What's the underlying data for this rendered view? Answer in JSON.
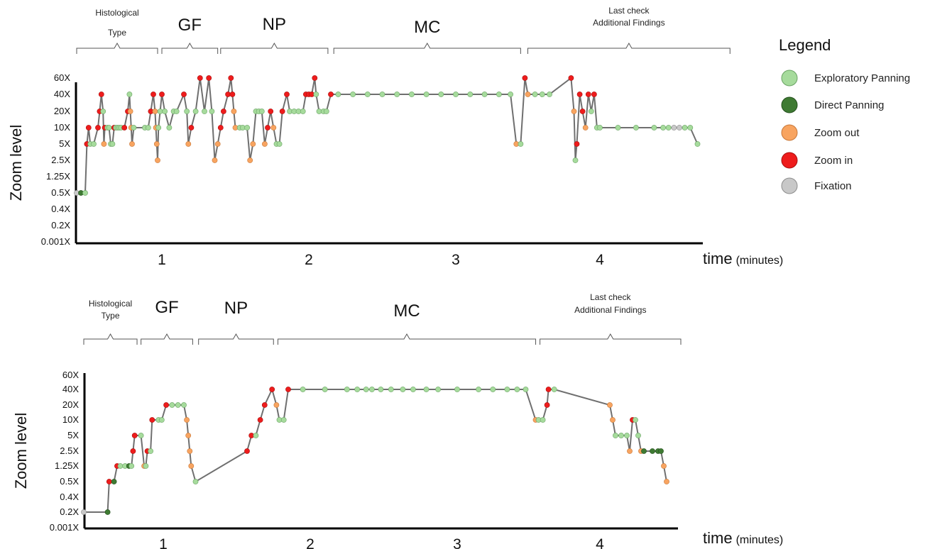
{
  "legend": {
    "title": "Legend",
    "items": [
      {
        "label": "Exploratory Panning",
        "color": "#a6db9c",
        "stroke": "#6aa364"
      },
      {
        "label": "Direct Panning",
        "color": "#3e7a32",
        "stroke": "#24501d"
      },
      {
        "label": "Zoom out",
        "color": "#f8a460",
        "stroke": "#c7783a"
      },
      {
        "label": "Zoom in",
        "color": "#ee1c1c",
        "stroke": "#a90f0f"
      },
      {
        "label": "Fixation",
        "color": "#c8c8c8",
        "stroke": "#8d8d8d"
      }
    ]
  },
  "chart_data": [
    {
      "type": "line",
      "ylabel": "Zoom level",
      "xlabel": "time",
      "xlabel_unit": "(minutes)",
      "y_ticks": [
        "60X",
        "40X",
        "20X",
        "10X",
        "5X",
        "2.5X",
        "1.25X",
        "0.5X",
        "0.4X",
        "0.2X",
        "0.001X"
      ],
      "x_ticks": [
        "1",
        "2",
        "3",
        "4"
      ],
      "xlim": [
        0.0,
        4.55
      ],
      "phases": [
        {
          "label": "Histological Type",
          "start": 0.0,
          "end": 0.95
        },
        {
          "label": "GF",
          "start": 1.0,
          "end": 1.38
        },
        {
          "label": "NP",
          "start": 1.4,
          "end": 2.13
        },
        {
          "label": "MC",
          "start": 2.17,
          "end": 3.45
        },
        {
          "label": "Last check Additional Findings",
          "start": 3.5,
          "end": 4.72
        }
      ],
      "points": [
        [
          0.0,
          "0.5X",
          "F"
        ],
        [
          0.05,
          "0.5X",
          "D"
        ],
        [
          0.1,
          "0.5X",
          "E"
        ],
        [
          0.12,
          "5X",
          "I"
        ],
        [
          0.14,
          "10X",
          "I"
        ],
        [
          0.16,
          "5X",
          "E"
        ],
        [
          0.2,
          "5X",
          "E"
        ],
        [
          0.25,
          "10X",
          "I"
        ],
        [
          0.27,
          "20X",
          "I"
        ],
        [
          0.29,
          "40X",
          "I"
        ],
        [
          0.31,
          "20X",
          "E"
        ],
        [
          0.32,
          "5X",
          "O"
        ],
        [
          0.33,
          "10X",
          "I"
        ],
        [
          0.36,
          "10X",
          "E"
        ],
        [
          0.38,
          "10X",
          "E"
        ],
        [
          0.4,
          "5X",
          "E"
        ],
        [
          0.42,
          "5X",
          "E"
        ],
        [
          0.44,
          "10X",
          "I"
        ],
        [
          0.46,
          "10X",
          "E"
        ],
        [
          0.48,
          "10X",
          "E"
        ],
        [
          0.5,
          "10X",
          "E"
        ],
        [
          0.52,
          "10X",
          "E"
        ],
        [
          0.56,
          "10X",
          "I"
        ],
        [
          0.6,
          "20X",
          "I"
        ],
        [
          0.62,
          "40X",
          "E"
        ],
        [
          0.63,
          "20X",
          "O"
        ],
        [
          0.64,
          "10X",
          "O"
        ],
        [
          0.65,
          "5X",
          "O"
        ],
        [
          0.67,
          "10X",
          "E"
        ],
        [
          0.8,
          "10X",
          "E"
        ],
        [
          0.84,
          "10X",
          "E"
        ],
        [
          0.87,
          "20X",
          "I"
        ],
        [
          0.9,
          "40X",
          "I"
        ],
        [
          0.92,
          "20X",
          "O"
        ],
        [
          0.93,
          "10X",
          "O"
        ],
        [
          0.94,
          "5X",
          "O"
        ],
        [
          0.95,
          "2.5X",
          "O"
        ],
        [
          0.96,
          "10X",
          "E"
        ],
        [
          0.98,
          "20X",
          "E"
        ],
        [
          1.0,
          "40X",
          "I"
        ],
        [
          1.02,
          "20X",
          "E"
        ],
        [
          1.05,
          "10X",
          "E"
        ],
        [
          1.08,
          "20X",
          "E"
        ],
        [
          1.1,
          "20X",
          "E"
        ],
        [
          1.15,
          "40X",
          "I"
        ],
        [
          1.17,
          "20X",
          "E"
        ],
        [
          1.18,
          "5X",
          "O"
        ],
        [
          1.2,
          "10X",
          "I"
        ],
        [
          1.23,
          "20X",
          "E"
        ],
        [
          1.26,
          "60X",
          "I"
        ],
        [
          1.29,
          "20X",
          "E"
        ],
        [
          1.32,
          "60X",
          "I"
        ],
        [
          1.34,
          "20X",
          "E"
        ],
        [
          1.36,
          "2.5X",
          "O"
        ],
        [
          1.38,
          "5X",
          "O"
        ],
        [
          1.4,
          "10X",
          "I"
        ],
        [
          1.42,
          "20X",
          "I"
        ],
        [
          1.45,
          "40X",
          "I"
        ],
        [
          1.47,
          "60X",
          "I"
        ],
        [
          1.48,
          "40X",
          "I"
        ],
        [
          1.49,
          "20X",
          "O"
        ],
        [
          1.5,
          "10X",
          "O"
        ],
        [
          1.53,
          "10X",
          "E"
        ],
        [
          1.55,
          "10X",
          "E"
        ],
        [
          1.58,
          "10X",
          "E"
        ],
        [
          1.6,
          "2.5X",
          "O"
        ],
        [
          1.62,
          "5X",
          "O"
        ],
        [
          1.64,
          "20X",
          "E"
        ],
        [
          1.66,
          "20X",
          "E"
        ],
        [
          1.68,
          "20X",
          "E"
        ],
        [
          1.7,
          "5X",
          "O"
        ],
        [
          1.72,
          "10X",
          "I"
        ],
        [
          1.74,
          "20X",
          "I"
        ],
        [
          1.76,
          "10X",
          "O"
        ],
        [
          1.78,
          "5X",
          "E"
        ],
        [
          1.8,
          "5X",
          "E"
        ],
        [
          1.82,
          "20X",
          "I"
        ],
        [
          1.85,
          "40X",
          "I"
        ],
        [
          1.87,
          "20X",
          "E"
        ],
        [
          1.9,
          "20X",
          "E"
        ],
        [
          1.93,
          "20X",
          "E"
        ],
        [
          1.96,
          "20X",
          "E"
        ],
        [
          1.98,
          "40X",
          "I"
        ],
        [
          2.0,
          "40X",
          "I"
        ],
        [
          2.02,
          "40X",
          "I"
        ],
        [
          2.04,
          "60X",
          "I"
        ],
        [
          2.05,
          "40X",
          "E"
        ],
        [
          2.07,
          "20X",
          "E"
        ],
        [
          2.1,
          "20X",
          "E"
        ],
        [
          2.12,
          "20X",
          "E"
        ],
        [
          2.15,
          "40X",
          "I"
        ],
        [
          2.2,
          "40X",
          "E"
        ],
        [
          2.3,
          "40X",
          "E"
        ],
        [
          2.4,
          "40X",
          "E"
        ],
        [
          2.5,
          "40X",
          "E"
        ],
        [
          2.6,
          "40X",
          "E"
        ],
        [
          2.7,
          "40X",
          "E"
        ],
        [
          2.8,
          "40X",
          "E"
        ],
        [
          2.9,
          "40X",
          "E"
        ],
        [
          3.0,
          "40X",
          "E"
        ],
        [
          3.1,
          "40X",
          "E"
        ],
        [
          3.2,
          "40X",
          "E"
        ],
        [
          3.3,
          "40X",
          "E"
        ],
        [
          3.38,
          "40X",
          "E"
        ],
        [
          3.42,
          "5X",
          "O"
        ],
        [
          3.45,
          "5X",
          "E"
        ],
        [
          3.48,
          "60X",
          "I"
        ],
        [
          3.5,
          "40X",
          "O"
        ],
        [
          3.55,
          "40X",
          "E"
        ],
        [
          3.6,
          "40X",
          "E"
        ],
        [
          3.65,
          "40X",
          "E"
        ],
        [
          3.8,
          "60X",
          "I"
        ],
        [
          3.82,
          "20X",
          "O"
        ],
        [
          3.83,
          "2.5X",
          "E"
        ],
        [
          3.84,
          "5X",
          "I"
        ],
        [
          3.86,
          "40X",
          "I"
        ],
        [
          3.88,
          "20X",
          "I"
        ],
        [
          3.9,
          "10X",
          "O"
        ],
        [
          3.92,
          "40X",
          "I"
        ],
        [
          3.94,
          "20X",
          "E"
        ],
        [
          3.96,
          "40X",
          "I"
        ],
        [
          3.98,
          "10X",
          "E"
        ],
        [
          4.0,
          "10X",
          "E"
        ],
        [
          4.1,
          "10X",
          "E"
        ],
        [
          4.2,
          "10X",
          "E"
        ],
        [
          4.3,
          "10X",
          "E"
        ],
        [
          4.35,
          "10X",
          "E"
        ],
        [
          4.38,
          "10X",
          "E"
        ],
        [
          4.41,
          "10X",
          "F"
        ],
        [
          4.44,
          "10X",
          "F"
        ],
        [
          4.47,
          "10X",
          "E"
        ],
        [
          4.5,
          "10X",
          "E"
        ],
        [
          4.54,
          "5X",
          "E"
        ]
      ]
    },
    {
      "type": "line",
      "ylabel": "Zoom level",
      "xlabel": "time",
      "xlabel_unit": "(minutes)",
      "y_ticks": [
        "60X",
        "40X",
        "20X",
        "10X",
        "5X",
        "2.5X",
        "1.25X",
        "0.5X",
        "0.4X",
        "0.2X",
        "0.001X"
      ],
      "x_ticks": [
        "1",
        "2",
        "3",
        "4"
      ],
      "xlim": [
        0.0,
        4.55
      ],
      "phases": [
        {
          "label": "Histological Type",
          "start": 0.0,
          "end": 0.67
        },
        {
          "label": "GF",
          "start": 0.72,
          "end": 1.2
        },
        {
          "label": "NP",
          "start": 1.24,
          "end": 1.75
        },
        {
          "label": "MC",
          "start": 1.78,
          "end": 3.55
        },
        {
          "label": "Last check Additional Findings",
          "start": 3.58,
          "end": 4.57
        }
      ],
      "points": [
        [
          0.0,
          "0.2X",
          "F"
        ],
        [
          0.3,
          "0.2X",
          "D"
        ],
        [
          0.32,
          "0.5X",
          "I"
        ],
        [
          0.38,
          "0.5X",
          "D"
        ],
        [
          0.42,
          "1.25X",
          "I"
        ],
        [
          0.46,
          "1.25X",
          "E"
        ],
        [
          0.52,
          "1.25X",
          "E"
        ],
        [
          0.57,
          "1.25X",
          "D"
        ],
        [
          0.6,
          "1.25X",
          "E"
        ],
        [
          0.62,
          "2.5X",
          "I"
        ],
        [
          0.64,
          "5X",
          "I"
        ],
        [
          0.72,
          "5X",
          "E"
        ],
        [
          0.76,
          "1.25X",
          "O"
        ],
        [
          0.78,
          "1.25X",
          "E"
        ],
        [
          0.8,
          "2.5X",
          "I"
        ],
        [
          0.84,
          "2.5X",
          "E"
        ],
        [
          0.86,
          "10X",
          "I"
        ],
        [
          0.94,
          "10X",
          "E"
        ],
        [
          0.98,
          "10X",
          "E"
        ],
        [
          1.02,
          "20X",
          "I"
        ],
        [
          1.06,
          "20X",
          "E"
        ],
        [
          1.1,
          "20X",
          "E"
        ],
        [
          1.14,
          "20X",
          "E"
        ],
        [
          1.16,
          "10X",
          "O"
        ],
        [
          1.17,
          "5X",
          "O"
        ],
        [
          1.18,
          "2.5X",
          "O"
        ],
        [
          1.19,
          "1.25X",
          "O"
        ],
        [
          1.22,
          "0.5X",
          "E"
        ],
        [
          1.57,
          "2.5X",
          "I"
        ],
        [
          1.6,
          "5X",
          "I"
        ],
        [
          1.63,
          "5X",
          "E"
        ],
        [
          1.66,
          "10X",
          "I"
        ],
        [
          1.69,
          "20X",
          "I"
        ],
        [
          1.74,
          "40X",
          "I"
        ],
        [
          1.77,
          "20X",
          "O"
        ],
        [
          1.79,
          "10X",
          "E"
        ],
        [
          1.82,
          "10X",
          "E"
        ],
        [
          1.85,
          "40X",
          "I"
        ],
        [
          1.95,
          "40X",
          "E"
        ],
        [
          2.1,
          "40X",
          "E"
        ],
        [
          2.25,
          "40X",
          "E"
        ],
        [
          2.32,
          "40X",
          "E"
        ],
        [
          2.38,
          "40X",
          "E"
        ],
        [
          2.42,
          "40X",
          "E"
        ],
        [
          2.48,
          "40X",
          "E"
        ],
        [
          2.55,
          "40X",
          "E"
        ],
        [
          2.63,
          "40X",
          "E"
        ],
        [
          2.7,
          "40X",
          "E"
        ],
        [
          2.79,
          "40X",
          "E"
        ],
        [
          2.87,
          "40X",
          "E"
        ],
        [
          3.0,
          "40X",
          "E"
        ],
        [
          3.15,
          "40X",
          "E"
        ],
        [
          3.25,
          "40X",
          "E"
        ],
        [
          3.35,
          "40X",
          "E"
        ],
        [
          3.42,
          "40X",
          "E"
        ],
        [
          3.48,
          "40X",
          "E"
        ],
        [
          3.55,
          "10X",
          "O"
        ],
        [
          3.57,
          "10X",
          "E"
        ],
        [
          3.6,
          "10X",
          "E"
        ],
        [
          3.63,
          "20X",
          "I"
        ],
        [
          3.64,
          "40X",
          "I"
        ],
        [
          3.68,
          "40X",
          "E"
        ],
        [
          4.07,
          "20X",
          "O"
        ],
        [
          4.09,
          "10X",
          "O"
        ],
        [
          4.11,
          "5X",
          "E"
        ],
        [
          4.15,
          "5X",
          "E"
        ],
        [
          4.19,
          "5X",
          "E"
        ],
        [
          4.21,
          "2.5X",
          "O"
        ],
        [
          4.23,
          "10X",
          "I"
        ],
        [
          4.25,
          "10X",
          "E"
        ],
        [
          4.27,
          "5X",
          "E"
        ],
        [
          4.29,
          "2.5X",
          "O"
        ],
        [
          4.31,
          "2.5X",
          "D"
        ],
        [
          4.37,
          "2.5X",
          "D"
        ],
        [
          4.41,
          "2.5X",
          "D"
        ],
        [
          4.43,
          "2.5X",
          "D"
        ],
        [
          4.45,
          "1.25X",
          "O"
        ],
        [
          4.47,
          "0.5X",
          "O"
        ]
      ]
    }
  ]
}
